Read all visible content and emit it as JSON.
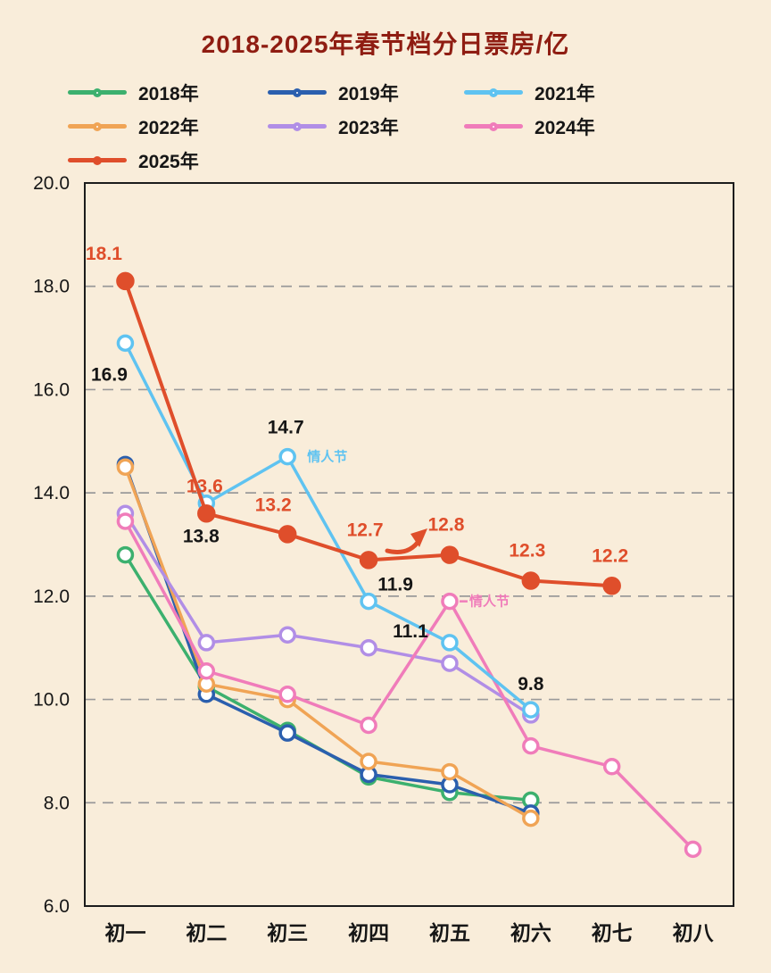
{
  "title": "2018-2025年春节档分日票房/亿",
  "colors": {
    "background": "#f9edda",
    "title": "#8f1d12",
    "axis_text": "#161616",
    "grid": "#9a9a9a",
    "plot_border": "#1c1c1c",
    "accent_red": "#df4e2b"
  },
  "legend": [
    {
      "label": "2018年",
      "color": "#3cb06e",
      "filled": false
    },
    {
      "label": "2019年",
      "color": "#2b5fae",
      "filled": false
    },
    {
      "label": "2021年",
      "color": "#5fc3f1",
      "filled": false
    },
    {
      "label": "2022年",
      "color": "#f0a455",
      "filled": false
    },
    {
      "label": "2023年",
      "color": "#b18ee6",
      "filled": false
    },
    {
      "label": "2024年",
      "color": "#f07cba",
      "filled": false
    },
    {
      "label": "2025年",
      "color": "#df4e2b",
      "filled": true
    }
  ],
  "chart_data": {
    "type": "line",
    "title": "2018-2025年春节档分日票房/亿",
    "categories": [
      "初一",
      "初二",
      "初三",
      "初四",
      "初五",
      "初六",
      "初七",
      "初八"
    ],
    "ylim": [
      6.0,
      20.0
    ],
    "yticks": [
      "6.0",
      "8.0",
      "10.0",
      "12.0",
      "14.0",
      "16.0",
      "18.0",
      "20.0"
    ],
    "grid": "dashed-horizontal",
    "legend_position": "top-left",
    "series": [
      {
        "name": "2018年",
        "color": "#3cb06e",
        "filled": false,
        "values": [
          12.8,
          10.25,
          9.4,
          8.5,
          8.2,
          8.05
        ]
      },
      {
        "name": "2019年",
        "color": "#2b5fae",
        "filled": false,
        "values": [
          14.55,
          10.1,
          9.35,
          8.55,
          8.35,
          7.8
        ]
      },
      {
        "name": "2021年",
        "color": "#5fc3f1",
        "filled": false,
        "values": [
          16.9,
          13.8,
          14.7,
          11.9,
          11.1,
          9.8
        ],
        "point_labels": [
          "16.9",
          "13.8",
          "14.7",
          "11.9",
          "11.1",
          "9.8"
        ],
        "label_color": "#161616"
      },
      {
        "name": "2022年",
        "color": "#f0a455",
        "filled": false,
        "values": [
          14.5,
          10.3,
          10.0,
          8.8,
          8.6,
          7.7
        ]
      },
      {
        "name": "2023年",
        "color": "#b18ee6",
        "filled": false,
        "values": [
          13.6,
          11.1,
          11.25,
          11.0,
          10.7,
          9.7
        ]
      },
      {
        "name": "2024年",
        "color": "#f07cba",
        "filled": false,
        "values": [
          13.45,
          10.55,
          10.1,
          9.5,
          11.9,
          9.1,
          8.7,
          7.1
        ]
      },
      {
        "name": "2025年",
        "color": "#df4e2b",
        "filled": true,
        "values": [
          18.1,
          13.6,
          13.2,
          12.7,
          12.8,
          12.3,
          12.2
        ],
        "point_labels": [
          "18.1",
          "13.6",
          "13.2",
          "12.7",
          "12.8",
          "12.3",
          "12.2"
        ],
        "label_color": "#df4e2b"
      }
    ],
    "annotations": [
      {
        "type": "text",
        "text": "情人节",
        "series": "2021年",
        "index": 2,
        "color": "#5fc3f1"
      },
      {
        "type": "text",
        "text": "情人节",
        "series": "2024年",
        "index": 4,
        "color": "#f07cba",
        "dash": true
      },
      {
        "type": "trend-arrow",
        "color": "#df4e2b"
      }
    ]
  }
}
